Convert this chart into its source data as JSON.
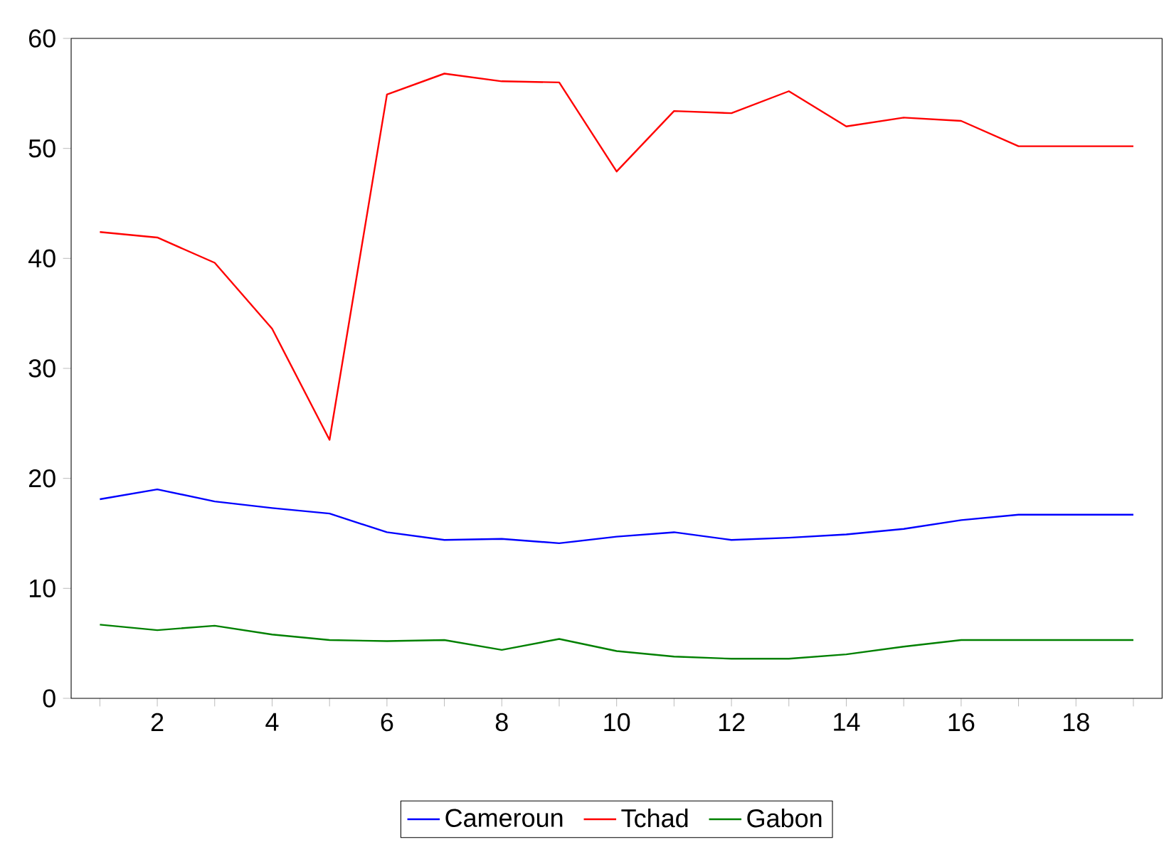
{
  "chart_data": {
    "type": "line",
    "x": [
      1,
      2,
      3,
      4,
      5,
      6,
      7,
      8,
      9,
      10,
      11,
      12,
      13,
      14,
      15,
      16,
      17,
      18,
      19
    ],
    "series": [
      {
        "name": "Cameroun",
        "color": "#0000ff",
        "values": [
          18.1,
          19.0,
          17.9,
          17.3,
          16.8,
          15.1,
          14.4,
          14.5,
          14.1,
          14.7,
          15.1,
          14.4,
          14.6,
          14.9,
          15.4,
          16.2,
          16.7,
          16.7,
          16.7
        ]
      },
      {
        "name": "Tchad",
        "color": "#ff0000",
        "values": [
          42.4,
          41.9,
          39.6,
          33.6,
          23.5,
          54.9,
          56.8,
          56.1,
          56.0,
          47.9,
          53.4,
          53.2,
          55.2,
          52.0,
          52.8,
          52.5,
          50.2,
          50.2,
          50.2
        ]
      },
      {
        "name": "Gabon",
        "color": "#008000",
        "values": [
          6.7,
          6.2,
          6.6,
          5.8,
          5.3,
          5.2,
          5.3,
          4.4,
          5.4,
          4.3,
          3.8,
          3.6,
          3.6,
          4.0,
          4.7,
          5.3,
          5.3,
          5.3,
          5.3
        ]
      }
    ],
    "xlim": [
      0.5,
      19.5
    ],
    "xticks": [
      {
        "value": 1,
        "label": null
      },
      2,
      {
        "value": 3,
        "label": null
      },
      4,
      {
        "value": 5,
        "label": null
      },
      6,
      {
        "value": 7,
        "label": null
      },
      8,
      {
        "value": 9,
        "label": null
      },
      10,
      {
        "value": 11,
        "label": null
      },
      12,
      {
        "value": 13,
        "label": null
      },
      14,
      {
        "value": 15,
        "label": null
      },
      16,
      {
        "value": 17,
        "label": null
      },
      18,
      {
        "value": 19,
        "label": null
      }
    ],
    "ylim": [
      0,
      60
    ],
    "yticks": [
      0,
      10,
      20,
      30,
      40,
      50,
      60
    ],
    "grid": false,
    "legend": "bottom",
    "marker": "none",
    "line_style": "solid"
  }
}
